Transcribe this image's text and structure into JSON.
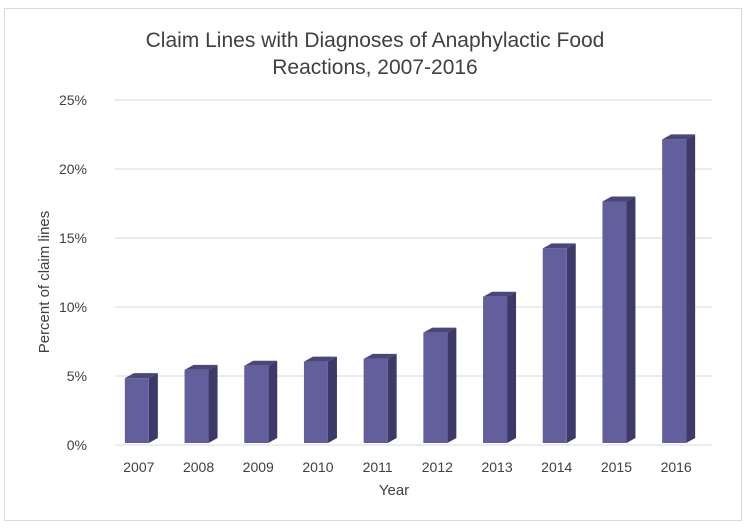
{
  "chart_data": {
    "type": "bar",
    "title_line1": "Claim Lines with Diagnoses of Anaphylactic Food",
    "title_line2": "Reactions, 2007-2016",
    "xlabel": "Year",
    "ylabel": "Percent of claim lines",
    "categories": [
      "2007",
      "2008",
      "2009",
      "2010",
      "2011",
      "2012",
      "2013",
      "2014",
      "2015",
      "2016"
    ],
    "values": [
      4.7,
      5.3,
      5.6,
      5.9,
      6.1,
      8.0,
      10.6,
      14.1,
      17.5,
      22.0
    ],
    "ylim": [
      0,
      25
    ],
    "yticks": [
      0,
      5,
      10,
      15,
      20,
      25
    ],
    "ytick_labels": [
      "0%",
      "5%",
      "10%",
      "15%",
      "20%",
      "25%"
    ],
    "grid": true,
    "legend": "none",
    "colors": {
      "bar_front": "#635f9c",
      "bar_side": "#3d3968",
      "bar_top": "#4a4679",
      "grid": "#d9d9d9",
      "text": "#404040"
    }
  }
}
